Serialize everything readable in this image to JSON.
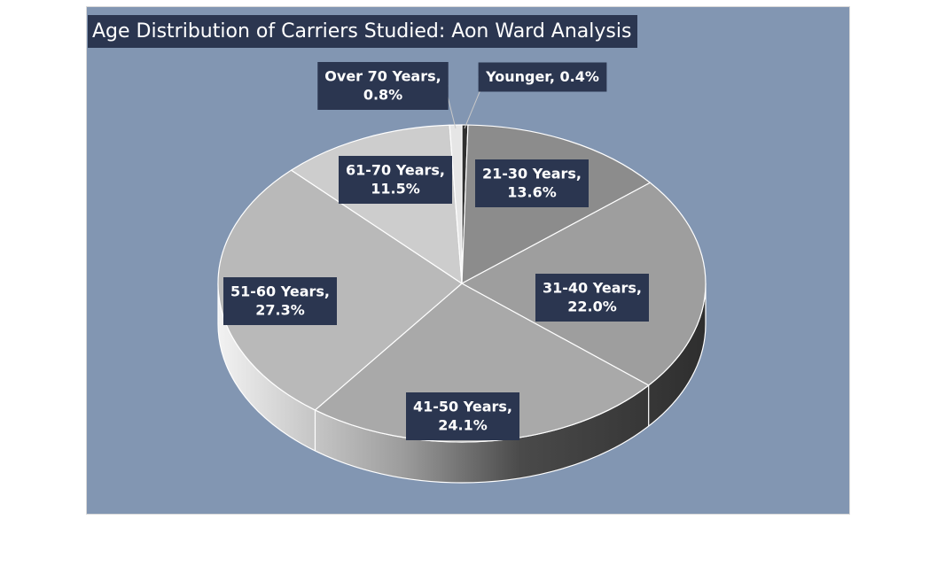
{
  "chart_data": {
    "type": "pie",
    "title": "Age Distribution of Carriers Studied: Aon Ward Analysis",
    "three_d": true,
    "background_color": "#8296b2",
    "label_box_color": "#2b3650",
    "slices": [
      {
        "label": "Younger",
        "value": 0.4,
        "value_text": "0.4%",
        "label_lines": [
          "Younger, 0.4%"
        ],
        "color": "#303030"
      },
      {
        "label": "21-30 Years",
        "value": 13.6,
        "value_text": "13.6%",
        "label_lines": [
          "21-30 Years,",
          "13.6%"
        ],
        "color": "#8c8c8c"
      },
      {
        "label": "31-40 Years",
        "value": 22.0,
        "value_text": "22.0%",
        "label_lines": [
          "31-40 Years,",
          "22.0%"
        ],
        "color": "#9e9e9e"
      },
      {
        "label": "41-50 Years",
        "value": 24.1,
        "value_text": "24.1%",
        "label_lines": [
          "41-50 Years,",
          "24.1%"
        ],
        "color": "#a9a9a9"
      },
      {
        "label": "51-60 Years",
        "value": 27.3,
        "value_text": "27.3%",
        "label_lines": [
          "51-60 Years,",
          "27.3%"
        ],
        "color": "#b9b9b9"
      },
      {
        "label": "61-70 Years",
        "value": 11.5,
        "value_text": "11.5%",
        "label_lines": [
          "61-70 Years,",
          "11.5%"
        ],
        "color": "#cdcdcd"
      },
      {
        "label": "Over 70 Years",
        "value": 0.8,
        "value_text": "0.8%",
        "label_lines": [
          "Over 70 Years,",
          "0.8%"
        ],
        "color": "#e6e6e6"
      }
    ]
  }
}
